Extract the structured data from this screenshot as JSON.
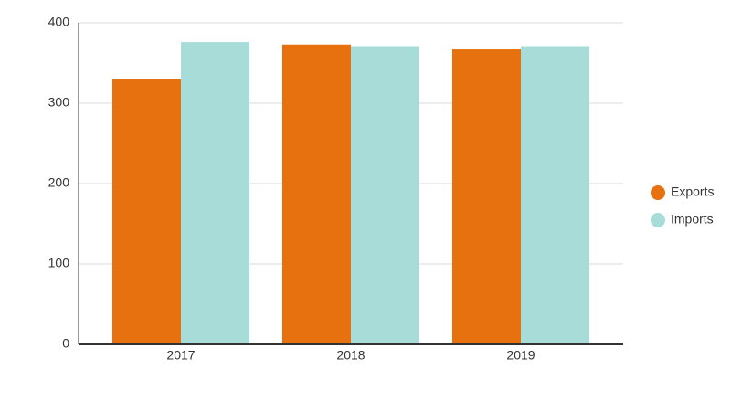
{
  "chart_data": {
    "type": "bar",
    "categories": [
      "2017",
      "2018",
      "2019"
    ],
    "series": [
      {
        "name": "Exports",
        "color": "#e8710f",
        "values": [
          330,
          373,
          367
        ]
      },
      {
        "name": "Imports",
        "color": "#a8dcd9",
        "values": [
          376,
          371,
          371
        ]
      }
    ],
    "ylim": [
      0,
      400
    ],
    "yticks": [
      0,
      100,
      200,
      300,
      400
    ],
    "grid": true,
    "legend": "right"
  }
}
